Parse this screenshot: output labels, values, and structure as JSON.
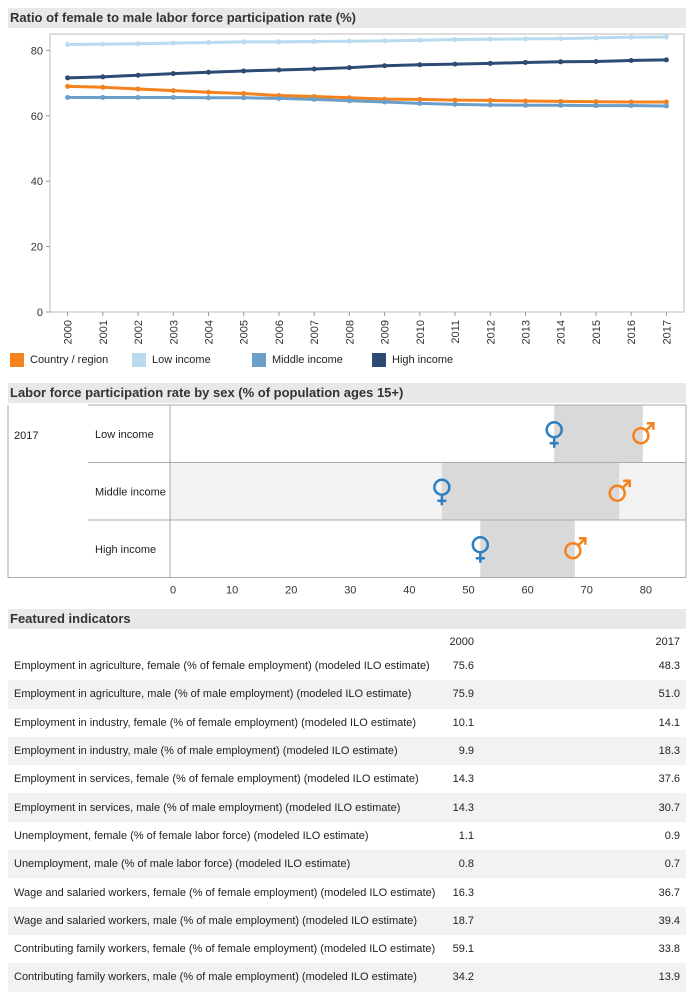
{
  "chart_data": [
    {
      "type": "line",
      "title": "Ratio of female to male labor force participation rate (%)",
      "x": [
        "2000",
        "2001",
        "2002",
        "2003",
        "2004",
        "2005",
        "2006",
        "2007",
        "2008",
        "2009",
        "2010",
        "2011",
        "2012",
        "2013",
        "2014",
        "2015",
        "2016",
        "2017"
      ],
      "ylim": [
        0,
        85
      ],
      "yticks": [
        0,
        20,
        40,
        60,
        80
      ],
      "grid": false,
      "legend_position": "bottom",
      "series": [
        {
          "name": "Country / region",
          "color": "#f5821f",
          "values": [
            69.0,
            68.7,
            68.2,
            67.7,
            67.2,
            66.8,
            66.2,
            65.9,
            65.5,
            65.1,
            65.0,
            64.8,
            64.7,
            64.5,
            64.4,
            64.3,
            64.2,
            64.2
          ]
        },
        {
          "name": "Low income",
          "color": "#b8dbf0",
          "values": [
            81.8,
            81.9,
            82.0,
            82.2,
            82.4,
            82.6,
            82.6,
            82.7,
            82.8,
            82.9,
            83.1,
            83.3,
            83.4,
            83.5,
            83.6,
            83.8,
            84.0,
            84.1
          ]
        },
        {
          "name": "Middle income",
          "color": "#6b9ec8",
          "values": [
            65.6,
            65.6,
            65.6,
            65.6,
            65.5,
            65.5,
            65.3,
            65.0,
            64.6,
            64.2,
            63.8,
            63.5,
            63.3,
            63.2,
            63.2,
            63.1,
            63.1,
            63.0
          ]
        },
        {
          "name": "High income",
          "color": "#2c4b74",
          "values": [
            71.6,
            71.9,
            72.4,
            72.9,
            73.3,
            73.7,
            74.0,
            74.3,
            74.7,
            75.3,
            75.6,
            75.8,
            76.0,
            76.3,
            76.5,
            76.6,
            76.9,
            77.1
          ]
        }
      ]
    },
    {
      "type": "scatter",
      "title": "Labor force participation rate by sex (% of population ages 15+)",
      "year": "2017",
      "categories": [
        "Low income",
        "Middle income",
        "High income"
      ],
      "female": [
        65.0,
        46.0,
        52.5
      ],
      "male": [
        80.0,
        76.0,
        68.5
      ],
      "xlim": [
        0,
        85
      ],
      "xticks": [
        0,
        10,
        20,
        30,
        40,
        50,
        60,
        70,
        80
      ],
      "female_color": "#2e7fc0",
      "male_color": "#f5821f",
      "female_symbol": "female-symbol-icon",
      "male_symbol": "male-symbol-icon"
    },
    {
      "type": "table",
      "title": "Featured indicators",
      "columns": [
        "2000",
        "2017"
      ],
      "rows": [
        {
          "label": "Employment in agriculture, female (% of female employment) (modeled ILO estimate)",
          "v2000": "75.6",
          "v2017": "48.3"
        },
        {
          "label": "Employment in agriculture, male (% of male employment) (modeled ILO estimate)",
          "v2000": "75.9",
          "v2017": "51.0"
        },
        {
          "label": "Employment in industry, female (% of female employment) (modeled ILO estimate)",
          "v2000": "10.1",
          "v2017": "14.1"
        },
        {
          "label": "Employment in industry, male (% of male employment) (modeled ILO estimate)",
          "v2000": "9.9",
          "v2017": "18.3"
        },
        {
          "label": "Employment in services, female (% of female employment) (modeled ILO estimate)",
          "v2000": "14.3",
          "v2017": "37.6"
        },
        {
          "label": "Employment in services, male (% of male employment) (modeled ILO estimate)",
          "v2000": "14.3",
          "v2017": "30.7"
        },
        {
          "label": "Unemployment, female (% of female labor force) (modeled ILO estimate)",
          "v2000": "1.1",
          "v2017": "0.9"
        },
        {
          "label": "Unemployment, male (% of male labor force) (modeled ILO estimate)",
          "v2000": "0.8",
          "v2017": "0.7"
        },
        {
          "label": "Wage and salaried workers, female (% of female employment) (modeled ILO estimate)",
          "v2000": "16.3",
          "v2017": "36.7"
        },
        {
          "label": "Wage and salaried workers, male (% of male employment) (modeled ILO estimate)",
          "v2000": "18.7",
          "v2017": "39.4"
        },
        {
          "label": "Contributing family workers, female (% of female employment) (modeled ILO estimate)",
          "v2000": "59.1",
          "v2017": "33.8"
        },
        {
          "label": "Contributing family workers, male (% of male employment) (modeled ILO estimate)",
          "v2000": "34.2",
          "v2017": "13.9"
        }
      ]
    }
  ]
}
